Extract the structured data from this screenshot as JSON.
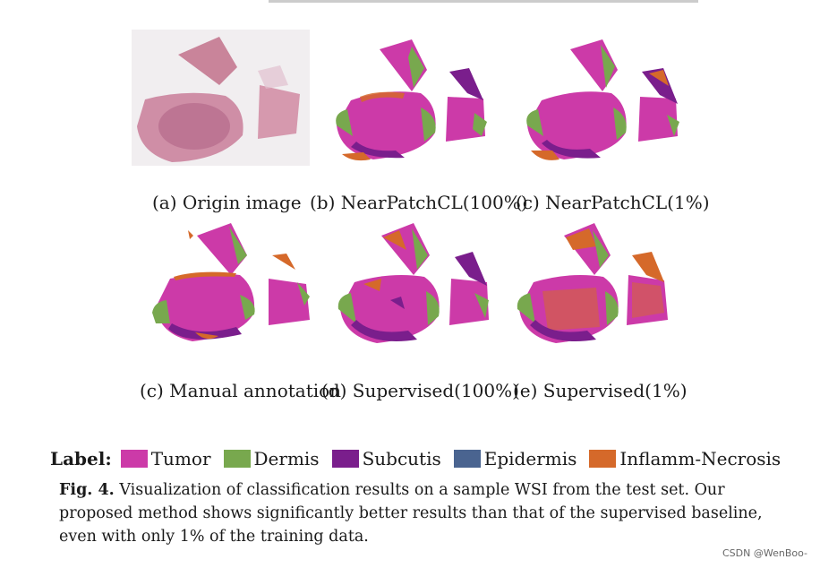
{
  "panels": [
    {
      "caption": "(a) Origin image"
    },
    {
      "caption": "(b) NearPatchCL(100%)"
    },
    {
      "caption": "(c) NearPatchCL(1%)"
    },
    {
      "caption": "(c) Manual annotation"
    },
    {
      "caption": "(d) Supervised(100%)"
    },
    {
      "caption": "(e) Supervised(1%)"
    }
  ],
  "legend": {
    "title": "Label:",
    "items": [
      {
        "label": "Tumor",
        "color": "#cc3aa8"
      },
      {
        "label": "Dermis",
        "color": "#78a84e"
      },
      {
        "label": "Subcutis",
        "color": "#7a1e8c"
      },
      {
        "label": "Epidermis",
        "color": "#4a6490"
      },
      {
        "label": "Inflamm-Necrosis",
        "color": "#d5692a"
      }
    ]
  },
  "figure_caption": {
    "label": "Fig. 4.",
    "text": "Visualization of classification results on a sample WSI from the test set. Our proposed method shows significantly better results than that of the supervised baseline, even with only 1% of the training data."
  },
  "watermark": "CSDN @WenBoo-"
}
